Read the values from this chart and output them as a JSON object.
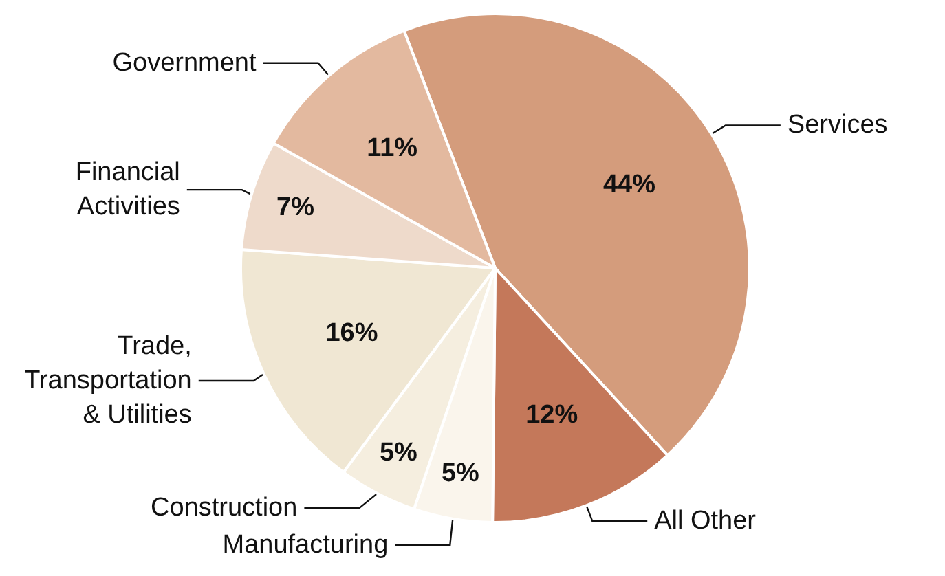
{
  "chart_data": {
    "type": "pie",
    "categories": [
      "Services",
      "All Other",
      "Manufacturing",
      "Construction",
      "Trade,\nTransportation\n& Utilities",
      "Financial\nActivities",
      "Government"
    ],
    "values": [
      44,
      12,
      5,
      5,
      16,
      7,
      11
    ],
    "value_labels": [
      "44%",
      "12%",
      "5%",
      "5%",
      "16%",
      "7%",
      "11%"
    ],
    "colors": [
      "#d49c7c",
      "#c4785a",
      "#faf5ec",
      "#f5eedf",
      "#f0e7d3",
      "#eedacb",
      "#e3b99f"
    ]
  }
}
